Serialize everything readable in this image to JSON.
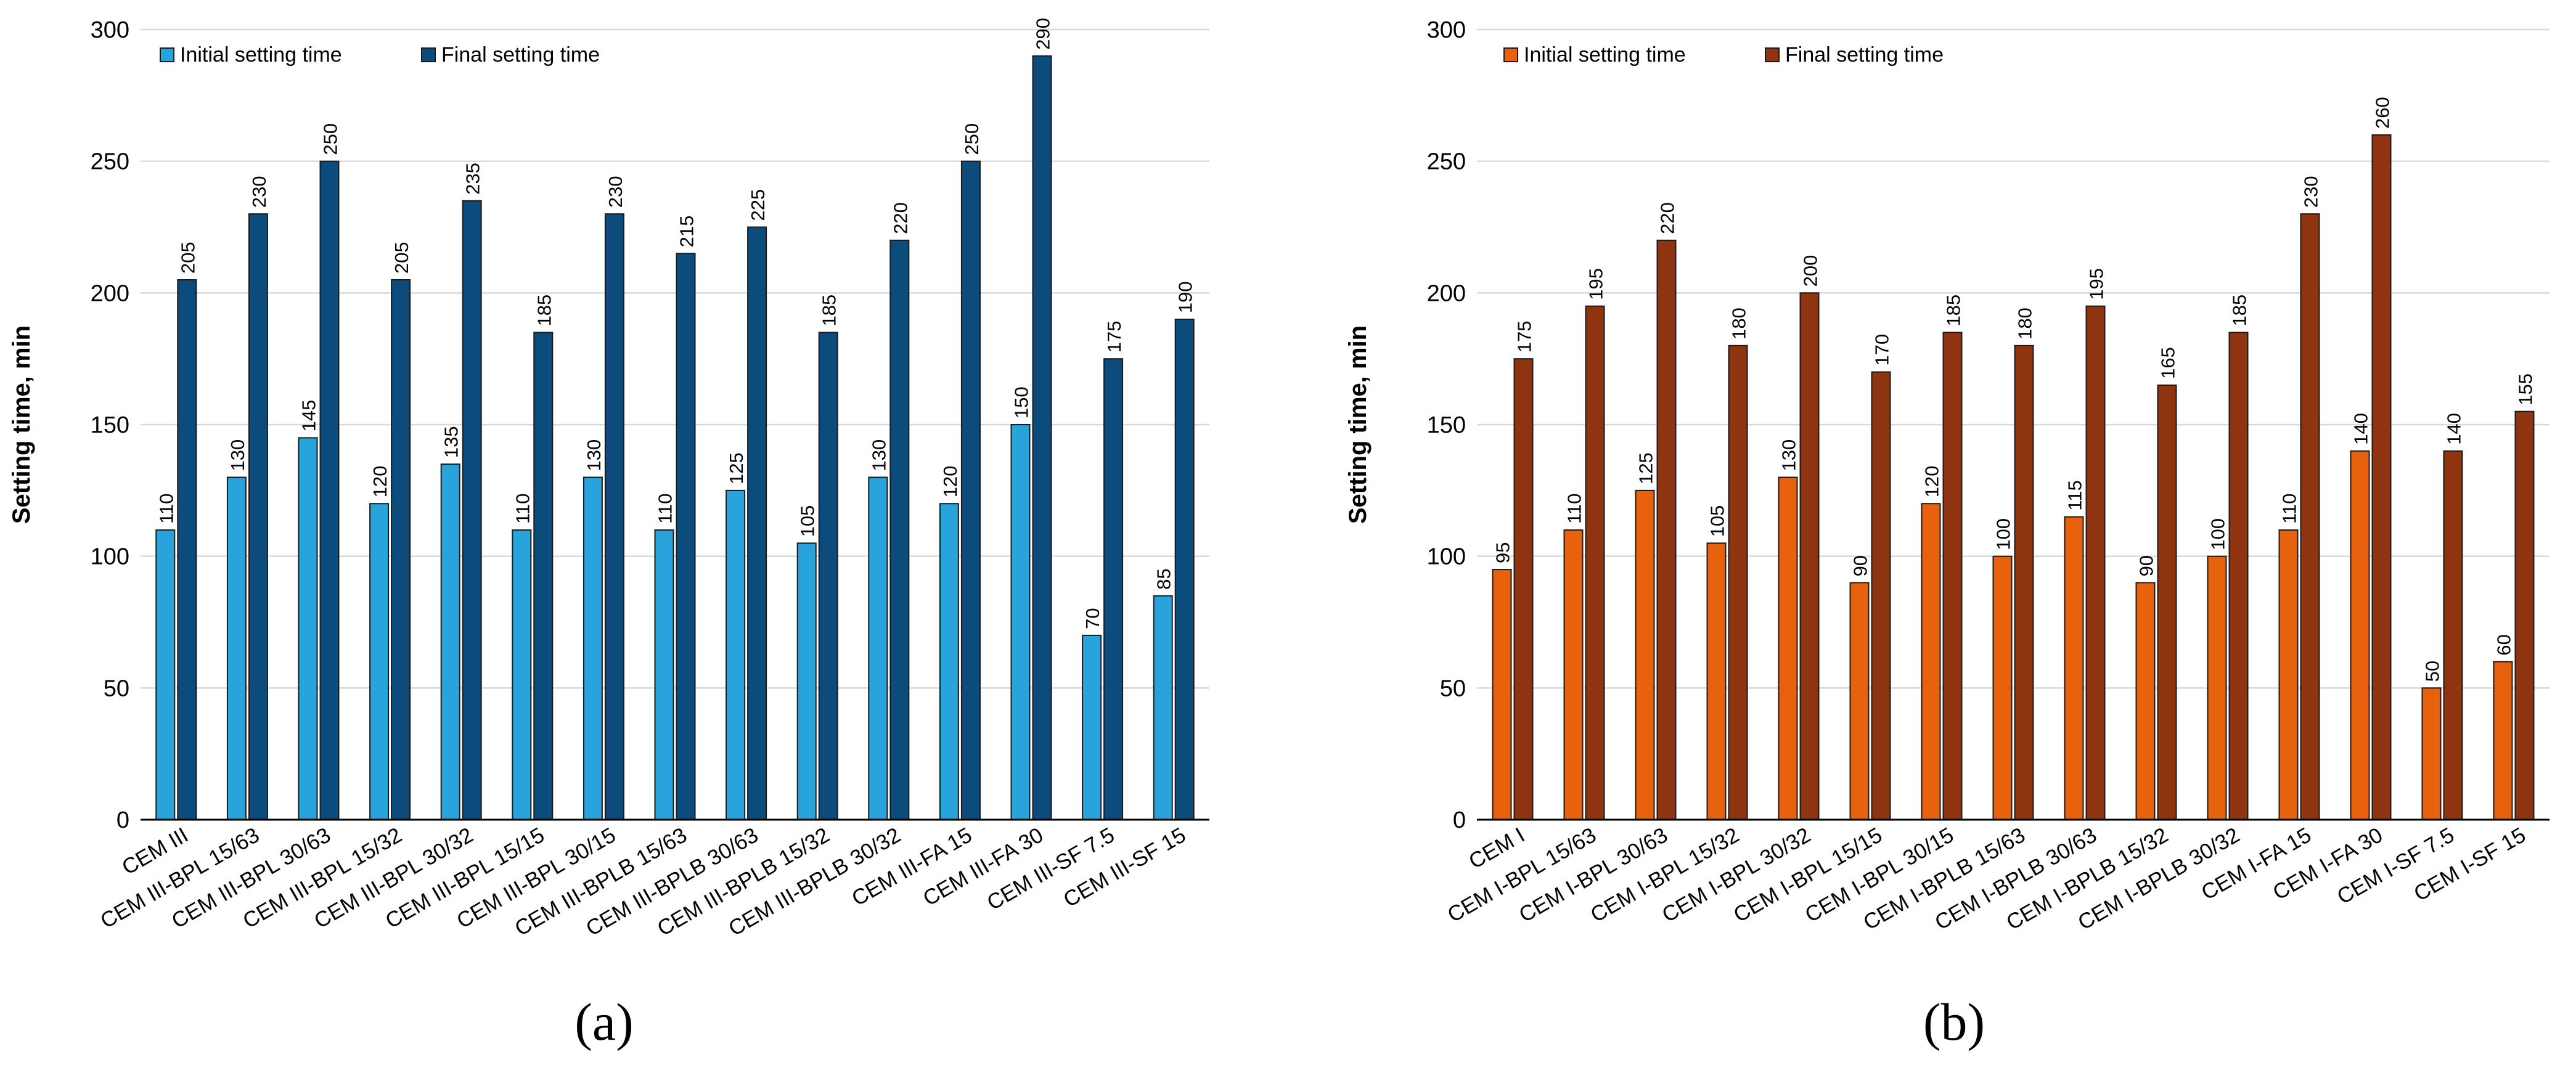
{
  "panels": [
    {
      "label": "(a)",
      "chart_data": {
        "type": "bar",
        "title": "",
        "xlabel": "",
        "ylabel": "Setting time, min",
        "ylim": [
          0,
          300
        ],
        "yticks": [
          0,
          50,
          100,
          150,
          200,
          250,
          300
        ],
        "grid": true,
        "legend": "top-left",
        "categories": [
          "CEM III",
          "CEM III-BPL 15/63",
          "CEM III-BPL 30/63",
          "CEM III-BPL 15/32",
          "CEM III-BPL 30/32",
          "CEM III-BPL 15/15",
          "CEM III-BPL 30/15",
          "CEM III-BPLB 15/63",
          "CEM III-BPLB 30/63",
          "CEM III-BPLB 15/32",
          "CEM III-BPLB 30/32",
          "CEM III-FA 15",
          "CEM III-FA 30",
          "CEM III-SF 7.5",
          "CEM III-SF 15"
        ],
        "series": [
          {
            "name": "Initial setting time",
            "color": "#29A3DB",
            "values": [
              110,
              130,
              145,
              120,
              135,
              110,
              130,
              110,
              125,
              105,
              130,
              120,
              150,
              70,
              85
            ]
          },
          {
            "name": "Final setting time",
            "color": "#0B4C7C",
            "values": [
              205,
              230,
              250,
              205,
              235,
              185,
              230,
              215,
              225,
              185,
              220,
              250,
              290,
              175,
              190
            ]
          }
        ]
      }
    },
    {
      "label": "(b)",
      "chart_data": {
        "type": "bar",
        "title": "",
        "xlabel": "",
        "ylabel": "Setting time, min",
        "ylim": [
          0,
          300
        ],
        "yticks": [
          0,
          50,
          100,
          150,
          200,
          250,
          300
        ],
        "grid": true,
        "legend": "top-left",
        "categories": [
          "CEM I",
          "CEM I-BPL 15/63",
          "CEM I-BPL 30/63",
          "CEM I-BPL 15/32",
          "CEM I-BPL 30/32",
          "CEM I-BPL 15/15",
          "CEM I-BPL 30/15",
          "CEM I-BPLB 15/63",
          "CEM I-BPLB 30/63",
          "CEM I-BPLB 15/32",
          "CEM I-BPLB 30/32",
          "CEM I-FA 15",
          "CEM I-FA 30",
          "CEM I-SF 7.5",
          "CEM I-SF 15"
        ],
        "series": [
          {
            "name": "Initial setting time",
            "color": "#E8620E",
            "values": [
              95,
              110,
              125,
              105,
              130,
              90,
              120,
              100,
              115,
              90,
              100,
              110,
              140,
              50,
              60
            ]
          },
          {
            "name": "Final setting time",
            "color": "#8E3410",
            "values": [
              175,
              195,
              220,
              180,
              200,
              170,
              185,
              180,
              195,
              165,
              185,
              230,
              260,
              140,
              155
            ]
          }
        ]
      }
    }
  ]
}
